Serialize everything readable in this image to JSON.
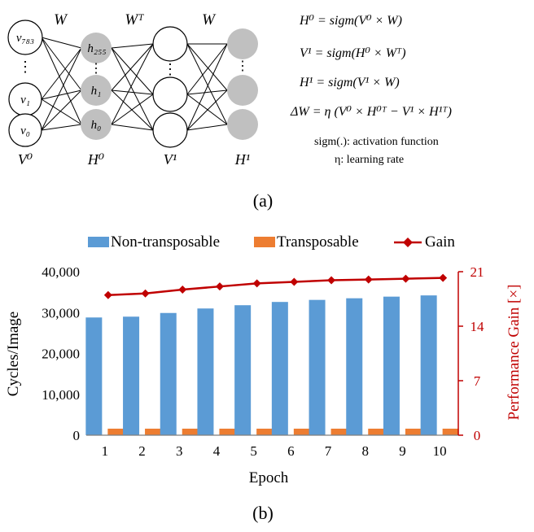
{
  "figure_a": {
    "caption": "(a)",
    "weights": [
      "W",
      "Wᵀ",
      "W"
    ],
    "layers": [
      "V⁰",
      "H⁰",
      "V¹",
      "H¹"
    ],
    "v0_nodes": [
      "v₇₈₃",
      "v₁",
      "v₀"
    ],
    "h0_nodes": [
      "h₂₅₅",
      "h₁",
      "h₀"
    ],
    "equations": [
      "H⁰ = sigm(V⁰ × W)",
      "V¹ = sigm(H⁰ × Wᵀ)",
      "H¹ = sigm(V¹ × W)",
      "ΔW = η (V⁰ × H⁰ᵀ − V¹ × H¹ᵀ)"
    ],
    "notes": [
      "sigm(.): activation function",
      "η: learning rate"
    ],
    "colors": {
      "hidden_node": "#c0c0c0",
      "visible_node": "#ffffff"
    }
  },
  "chart_data": {
    "type": "bar",
    "caption": "(b)",
    "title": "",
    "xlabel": "Epoch",
    "ylabel": "Cycles/Image",
    "y2label": "Performance Gain [×]",
    "categories": [
      "1",
      "2",
      "3",
      "4",
      "5",
      "6",
      "7",
      "8",
      "9",
      "10"
    ],
    "ylim": [
      0,
      40000
    ],
    "yticks": [
      "0",
      "10,000",
      "20,000",
      "30,000",
      "40,000"
    ],
    "y2lim": [
      0,
      21
    ],
    "y2ticks": [
      "0",
      "7",
      "14",
      "21"
    ],
    "legend_position": "top",
    "series": [
      {
        "name": "Non-transposable",
        "kind": "bar",
        "axis": "left",
        "color": "#5b9bd5",
        "values": [
          28800,
          29000,
          29900,
          31000,
          31800,
          32600,
          33100,
          33500,
          33900,
          34200
        ]
      },
      {
        "name": "Transposable",
        "kind": "bar",
        "axis": "left",
        "color": "#ed7d31",
        "values": [
          1600,
          1600,
          1600,
          1600,
          1600,
          1600,
          1600,
          1600,
          1600,
          1600
        ]
      },
      {
        "name": "Gain",
        "kind": "line",
        "axis": "right",
        "color": "#c00000",
        "values": [
          18.0,
          18.2,
          18.7,
          19.1,
          19.5,
          19.7,
          19.9,
          20.0,
          20.1,
          20.2
        ]
      }
    ]
  }
}
